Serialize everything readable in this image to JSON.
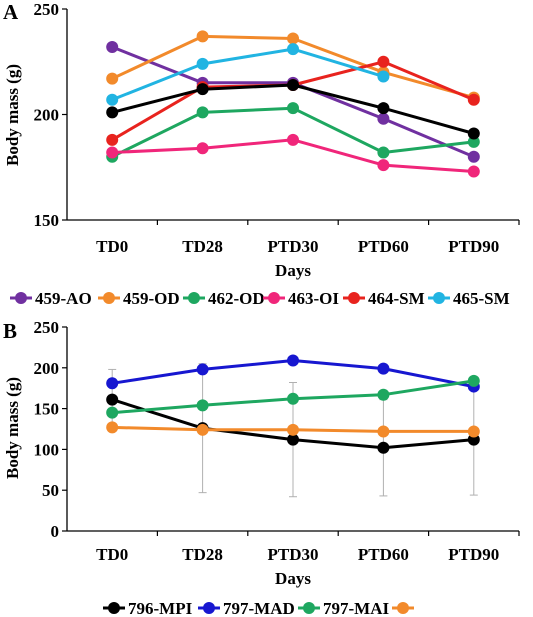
{
  "chart_data": [
    {
      "panel_label": "A",
      "type": "line",
      "categories": [
        "TD0",
        "TD28",
        "PTD30",
        "PTD60",
        "PTD90"
      ],
      "xlabel": "Days",
      "ylabel": "Body mass (g)",
      "ylim": [
        150,
        250
      ],
      "yticks": [
        "150",
        "200",
        "250"
      ],
      "grid": false,
      "legend_position": "bottom",
      "series": [
        {
          "name": "459-AO",
          "color": "#7030a0",
          "values": [
            232,
            215,
            215,
            198,
            180
          ]
        },
        {
          "name": "459-OD",
          "color": "#f28a2b",
          "values": [
            217,
            237,
            236,
            220,
            208
          ]
        },
        {
          "name": "462-OD",
          "color": "#1ea760",
          "values": [
            180,
            201,
            203,
            182,
            187
          ]
        },
        {
          "name": "463-OI",
          "color": "#f0267a",
          "values": [
            182,
            184,
            188,
            176,
            173
          ]
        },
        {
          "name": "464-SM",
          "color": "#e8231e",
          "values": [
            188,
            213,
            214,
            225,
            207
          ]
        },
        {
          "name": "465-SM",
          "color": "#21b4e2",
          "values": [
            207,
            224,
            231,
            218,
            null
          ]
        },
        {
          "name": "",
          "color": "#000000",
          "values": [
            201,
            212,
            214,
            203,
            191
          ]
        }
      ]
    },
    {
      "panel_label": "B",
      "type": "line",
      "categories": [
        "TD0",
        "TD28",
        "PTD30",
        "PTD60",
        "PTD90"
      ],
      "xlabel": "Days",
      "ylabel": "Body mass (g)",
      "ylim": [
        0,
        250
      ],
      "yticks": [
        "0",
        "50",
        "100",
        "150",
        "200",
        "250"
      ],
      "grid": false,
      "legend_position": "bottom",
      "error_bars": true,
      "series": [
        {
          "name": "796-MPI",
          "color": "#000000",
          "values": [
            161,
            126,
            112,
            102,
            112
          ],
          "errors": [
            37,
            79,
            70,
            59,
            68
          ]
        },
        {
          "name": "797-MAD",
          "color": "#1717d0",
          "values": [
            181,
            198,
            209,
            199,
            177
          ],
          "errors": [
            0,
            0,
            0,
            0,
            0
          ]
        },
        {
          "name": "797-MAI",
          "color": "#1ea760",
          "values": [
            145,
            154,
            162,
            167,
            184
          ],
          "errors": [
            0,
            0,
            0,
            0,
            0
          ]
        },
        {
          "name": "",
          "color": "#f28a2b",
          "values": [
            127,
            124,
            124,
            122,
            122
          ],
          "errors": [
            0,
            0,
            0,
            0,
            0
          ]
        }
      ]
    }
  ]
}
